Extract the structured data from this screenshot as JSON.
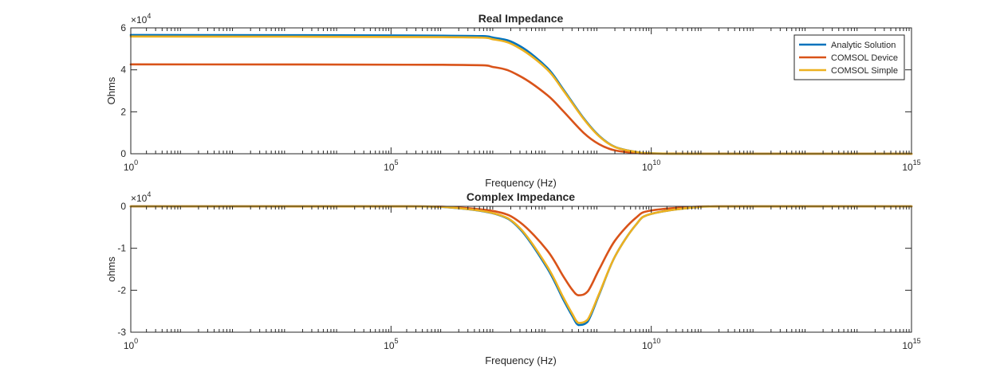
{
  "chart_data": [
    {
      "type": "line",
      "title": "Real Impedance",
      "xlabel": "Frequency (Hz)",
      "ylabel": "Ohms",
      "x_scale": "log",
      "x_tick_exponents": [
        0,
        5,
        10,
        15
      ],
      "x_tick_base": "10",
      "xlim": [
        1,
        1000000000000000.0
      ],
      "ylim": [
        0,
        60000
      ],
      "y_ticks": [
        0,
        20000,
        40000,
        60000
      ],
      "y_tick_labels": [
        "0",
        "2",
        "4",
        "6"
      ],
      "y_multiplier": "×10",
      "y_multiplier_exp": "4",
      "legend_position": "top-right",
      "series": [
        {
          "name": "Analytic Solution",
          "color": "#0072BD",
          "x": [
            1,
            1000000.0,
            10000000.0,
            30000000.0,
            100000000.0,
            200000000.0,
            500000000.0,
            1000000000.0,
            2000000000.0,
            5000000000.0,
            10000000000.0,
            100000000000.0,
            1000000000000000.0
          ],
          "y": [
            56600,
            56300,
            55200,
            51300,
            41000,
            31000,
            17000,
            8500,
            3300,
            900,
            200,
            0,
            0
          ]
        },
        {
          "name": "COMSOL Device",
          "color": "#D95319",
          "x": [
            1,
            1000000.0,
            10000000.0,
            30000000.0,
            100000000.0,
            200000000.0,
            500000000.0,
            1000000000.0,
            2000000000.0,
            5000000000.0,
            10000000000.0,
            100000000000.0,
            1000000000000000.0
          ],
          "y": [
            42600,
            42400,
            41200,
            37000,
            28000,
            20500,
            10000,
            4500,
            1600,
            400,
            100,
            0,
            0
          ]
        },
        {
          "name": "COMSOL Simple",
          "color": "#EDB120",
          "x": [
            1,
            1000000.0,
            10000000.0,
            30000000.0,
            100000000.0,
            200000000.0,
            500000000.0,
            1000000000.0,
            2000000000.0,
            5000000000.0,
            10000000000.0,
            100000000000.0,
            1000000000000000.0
          ],
          "y": [
            55900,
            55600,
            54400,
            50200,
            40200,
            30500,
            16700,
            8300,
            3200,
            900,
            200,
            0,
            0
          ]
        }
      ]
    },
    {
      "type": "line",
      "title": "Complex Impedance",
      "xlabel": "Frequency (Hz)",
      "ylabel": "ohms",
      "x_scale": "log",
      "x_tick_exponents": [
        0,
        5,
        10,
        15
      ],
      "x_tick_base": "10",
      "xlim": [
        1,
        1000000000000000.0
      ],
      "ylim": [
        -30000,
        0
      ],
      "y_ticks": [
        -30000,
        -20000,
        -10000,
        0
      ],
      "y_tick_labels": [
        "-3",
        "-2",
        "-1",
        "0"
      ],
      "y_multiplier": "×10",
      "y_multiplier_exp": "4",
      "series": [
        {
          "name": "Analytic Solution",
          "color": "#0072BD",
          "x": [
            1,
            100000.0,
            1000000.0,
            10000000.0,
            30000000.0,
            100000000.0,
            200000000.0,
            300000000.0,
            400000000.0,
            600000000.0,
            1000000000.0,
            2000000000.0,
            5000000000.0,
            10000000000.0,
            100000000000.0,
            1000000000000.0,
            1000000000000000.0
          ],
          "y": [
            0,
            -10,
            -150,
            -1800,
            -5400,
            -14700,
            -22000,
            -26000,
            -28300,
            -27500,
            -21000,
            -12000,
            -4500,
            -1800,
            -60,
            -5,
            0
          ]
        },
        {
          "name": "COMSOL Device",
          "color": "#D95319",
          "x": [
            1,
            100000.0,
            1000000.0,
            10000000.0,
            30000000.0,
            100000000.0,
            200000000.0,
            300000000.0,
            400000000.0,
            600000000.0,
            1000000000.0,
            2000000000.0,
            5000000000.0,
            10000000000.0,
            100000000000.0,
            1000000000000.0,
            1000000000000000.0
          ],
          "y": [
            0,
            -8,
            -100,
            -1200,
            -3800,
            -10500,
            -16500,
            -19800,
            -21200,
            -20300,
            -15000,
            -8200,
            -2800,
            -1000,
            -40,
            -3,
            0
          ]
        },
        {
          "name": "COMSOL Simple",
          "color": "#EDB120",
          "x": [
            1,
            100000.0,
            1000000.0,
            10000000.0,
            30000000.0,
            100000000.0,
            200000000.0,
            300000000.0,
            400000000.0,
            600000000.0,
            1000000000.0,
            2000000000.0,
            5000000000.0,
            10000000000.0,
            100000000000.0,
            1000000000000.0,
            1000000000000000.0
          ],
          "y": [
            0,
            -10,
            -145,
            -1750,
            -5200,
            -14300,
            -21500,
            -25500,
            -27800,
            -27000,
            -20800,
            -12000,
            -4500,
            -1800,
            -60,
            -5,
            0
          ]
        }
      ]
    }
  ]
}
